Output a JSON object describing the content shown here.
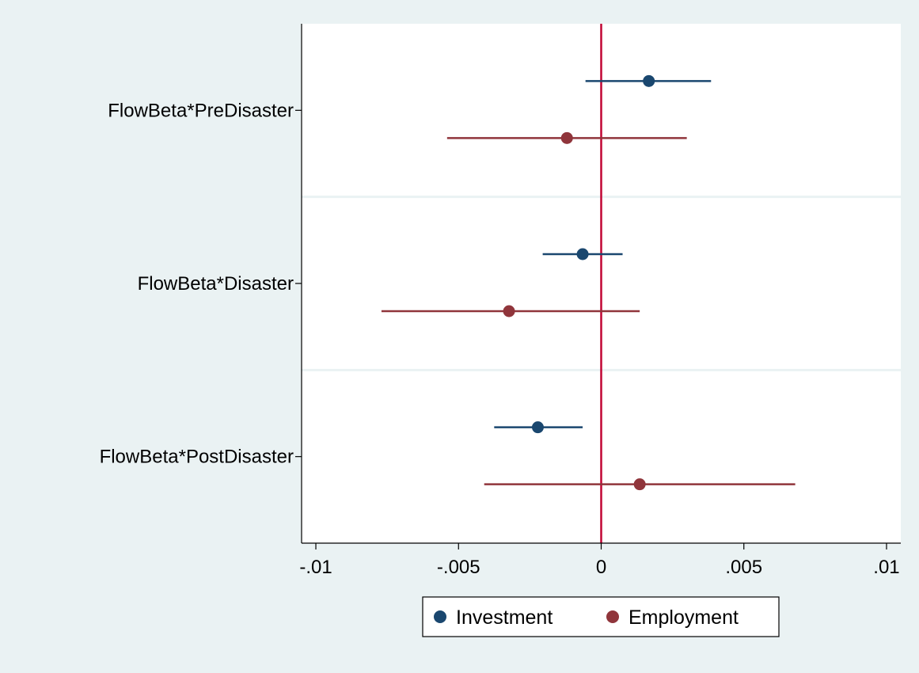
{
  "chart_data": {
    "type": "scatter",
    "subtype": "coefficient-plot",
    "title": "",
    "xlabel": "",
    "ylabel": "",
    "xlim": [
      -0.0105,
      0.0105
    ],
    "x_ticks": [
      -0.01,
      -0.005,
      0,
      0.005,
      0.01
    ],
    "x_tick_labels": [
      "-.01",
      "-.005",
      "0",
      ".005",
      ".01"
    ],
    "reference_line_x": 0,
    "grid": "horizontal separators between groups",
    "legend_position": "bottom",
    "categories": [
      "FlowBeta*PreDisaster",
      "FlowBeta*Disaster",
      "FlowBeta*PostDisaster"
    ],
    "series": [
      {
        "name": "Investment",
        "color": "#1a476f",
        "estimates": [
          0.00167,
          -0.00065,
          -0.00222
        ],
        "ci_low": [
          -0.00055,
          -0.00205,
          -0.00375
        ],
        "ci_high": [
          0.00385,
          0.00075,
          -0.00065
        ]
      },
      {
        "name": "Employment",
        "color": "#90353b",
        "estimates": [
          -0.0012,
          -0.00323,
          0.00135
        ],
        "ci_low": [
          -0.0054,
          -0.0077,
          -0.0041
        ],
        "ci_high": [
          0.003,
          0.00135,
          0.0068
        ]
      }
    ],
    "colors": {
      "background": "#eaf2f3",
      "plot_background": "#ffffff",
      "reference_line": "#c10534",
      "separator": "#eaf2f3"
    }
  }
}
